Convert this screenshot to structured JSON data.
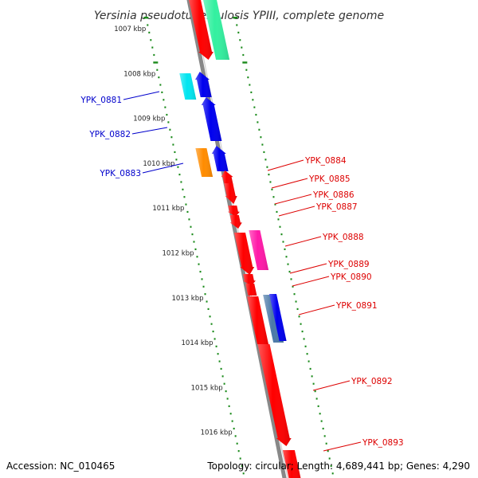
{
  "title": "Yersinia pseudotuberculosis YPIII, complete genome",
  "accession": "Accession: NC_010465",
  "topology": "Topology: circular; Length: 4,689,441 bp; Genes: 4,290",
  "colors": {
    "backbone": "#888888",
    "ticks": "#1a8a1a",
    "left_labels": "#0000cc",
    "right_labels": "#dd0000",
    "red": "#ff0000",
    "blue": "#0000ee",
    "cyan": "#00e5f0",
    "orange": "#ff8c00",
    "green": "#33f0a0",
    "magenta": "#ff1aa8",
    "steelblue": "#4b79a8"
  },
  "scale_labels": [
    "1007 kbp",
    "1008 kbp",
    "1009 kbp",
    "1010 kbp",
    "1011 kbp",
    "1012 kbp",
    "1013 kbp",
    "1014 kbp",
    "1015 kbp",
    "1016 kbp"
  ],
  "left_gene_labels": [
    "YPK_0881",
    "YPK_0882",
    "YPK_0883"
  ],
  "right_gene_labels": [
    "YPK_0884",
    "YPK_0885",
    "YPK_0886",
    "YPK_0887",
    "YPK_0888",
    "YPK_0889",
    "YPK_0890",
    "YPK_0891",
    "YPK_0892",
    "YPK_0893"
  ],
  "genes": [
    {
      "color": "red",
      "track": "inner-right"
    },
    {
      "color": "green",
      "track": "outer-right"
    },
    {
      "color": "cyan",
      "track": "outer-left",
      "label": "YPK_0881"
    },
    {
      "color": "blue",
      "track": "inner-left",
      "label": "YPK_0881"
    },
    {
      "color": "blue",
      "track": "inner-left",
      "label": "YPK_0882"
    },
    {
      "color": "orange",
      "track": "outer-left",
      "label": "YPK_0883"
    },
    {
      "color": "blue",
      "track": "inner-left",
      "label": "YPK_0883"
    },
    {
      "color": "red",
      "track": "inner-right",
      "label": "YPK_0884"
    },
    {
      "color": "red",
      "track": "inner-right",
      "label": "YPK_0885"
    },
    {
      "color": "red",
      "track": "inner-right",
      "label": "YPK_0886"
    },
    {
      "color": "red",
      "track": "inner-right",
      "label": "YPK_0887"
    },
    {
      "color": "red",
      "track": "inner-right",
      "label": "YPK_0888"
    },
    {
      "color": "magenta",
      "track": "outer-right",
      "label": "YPK_0888"
    },
    {
      "color": "red",
      "track": "inner-right",
      "label": "YPK_0889"
    },
    {
      "color": "red",
      "track": "inner-right",
      "label": "YPK_0890"
    },
    {
      "color": "red",
      "track": "inner-right",
      "label": "YPK_0891"
    },
    {
      "color": "steelblue",
      "track": "outer-right",
      "label": "YPK_0891"
    },
    {
      "color": "blue",
      "track": "outer-right",
      "label": "YPK_0891"
    },
    {
      "color": "red",
      "track": "inner-right",
      "label": "YPK_0892"
    },
    {
      "color": "red",
      "track": "inner-right",
      "label": "YPK_0893"
    }
  ]
}
